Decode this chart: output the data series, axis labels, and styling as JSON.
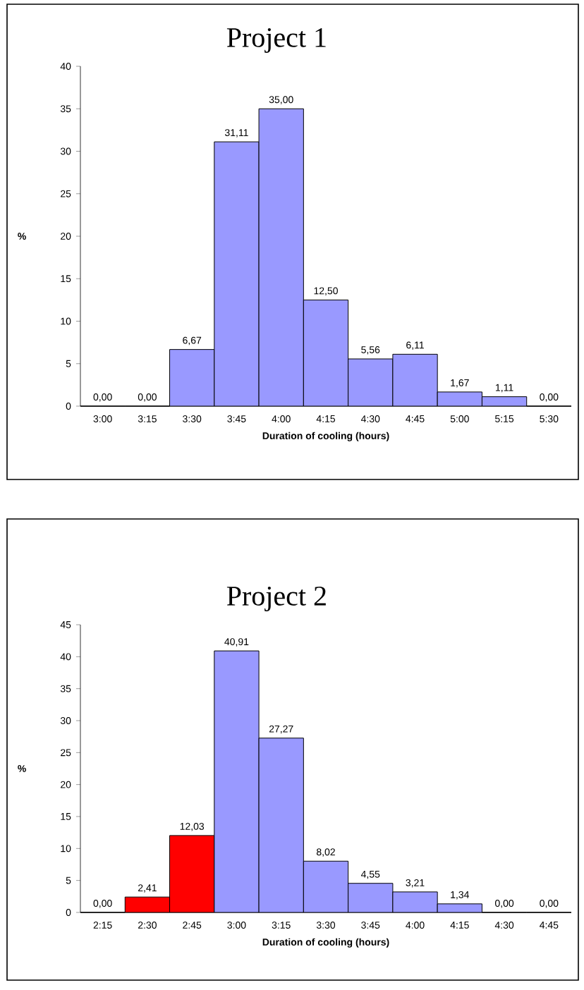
{
  "chart_data": [
    {
      "type": "bar",
      "title": "Project 1",
      "xlabel": "Duration of cooling (hours)",
      "ylabel": "%",
      "categories": [
        "3:00",
        "3:15",
        "3:30",
        "3:45",
        "4:00",
        "4:15",
        "4:30",
        "4:45",
        "5:00",
        "5:15",
        "5:30"
      ],
      "values": [
        0,
        0,
        6.67,
        31.11,
        35.0,
        12.5,
        5.56,
        6.11,
        1.67,
        1.11,
        0
      ],
      "value_labels": [
        "0,00",
        "0,00",
        "6,67",
        "31,11",
        "35,00",
        "12,50",
        "5,56",
        "6,11",
        "1,67",
        "1,11",
        "0,00"
      ],
      "colors": [
        "#9999ff",
        "#9999ff",
        "#9999ff",
        "#9999ff",
        "#9999ff",
        "#9999ff",
        "#9999ff",
        "#9999ff",
        "#9999ff",
        "#9999ff",
        "#9999ff"
      ],
      "ylim": [
        0,
        40
      ],
      "yticks": [
        0,
        5,
        10,
        15,
        20,
        25,
        30,
        35,
        40
      ]
    },
    {
      "type": "bar",
      "title": "Project 2",
      "xlabel": "Duration of cooling (hours)",
      "ylabel": "%",
      "categories": [
        "2:15",
        "2:30",
        "2:45",
        "3:00",
        "3:15",
        "3:30",
        "3:45",
        "4:00",
        "4:15",
        "4:30",
        "4:45"
      ],
      "values": [
        0,
        2.41,
        12.03,
        40.91,
        27.27,
        8.02,
        4.55,
        3.21,
        1.34,
        0,
        0
      ],
      "value_labels": [
        "0,00",
        "2,41",
        "12,03",
        "40,91",
        "27,27",
        "8,02",
        "4,55",
        "3,21",
        "1,34",
        "0,00",
        "0,00"
      ],
      "colors": [
        "#9999ff",
        "#ff0000",
        "#ff0000",
        "#9999ff",
        "#9999ff",
        "#9999ff",
        "#9999ff",
        "#9999ff",
        "#9999ff",
        "#9999ff",
        "#9999ff"
      ],
      "ylim": [
        0,
        45
      ],
      "yticks": [
        0,
        5,
        10,
        15,
        20,
        25,
        30,
        35,
        40,
        45
      ]
    }
  ]
}
